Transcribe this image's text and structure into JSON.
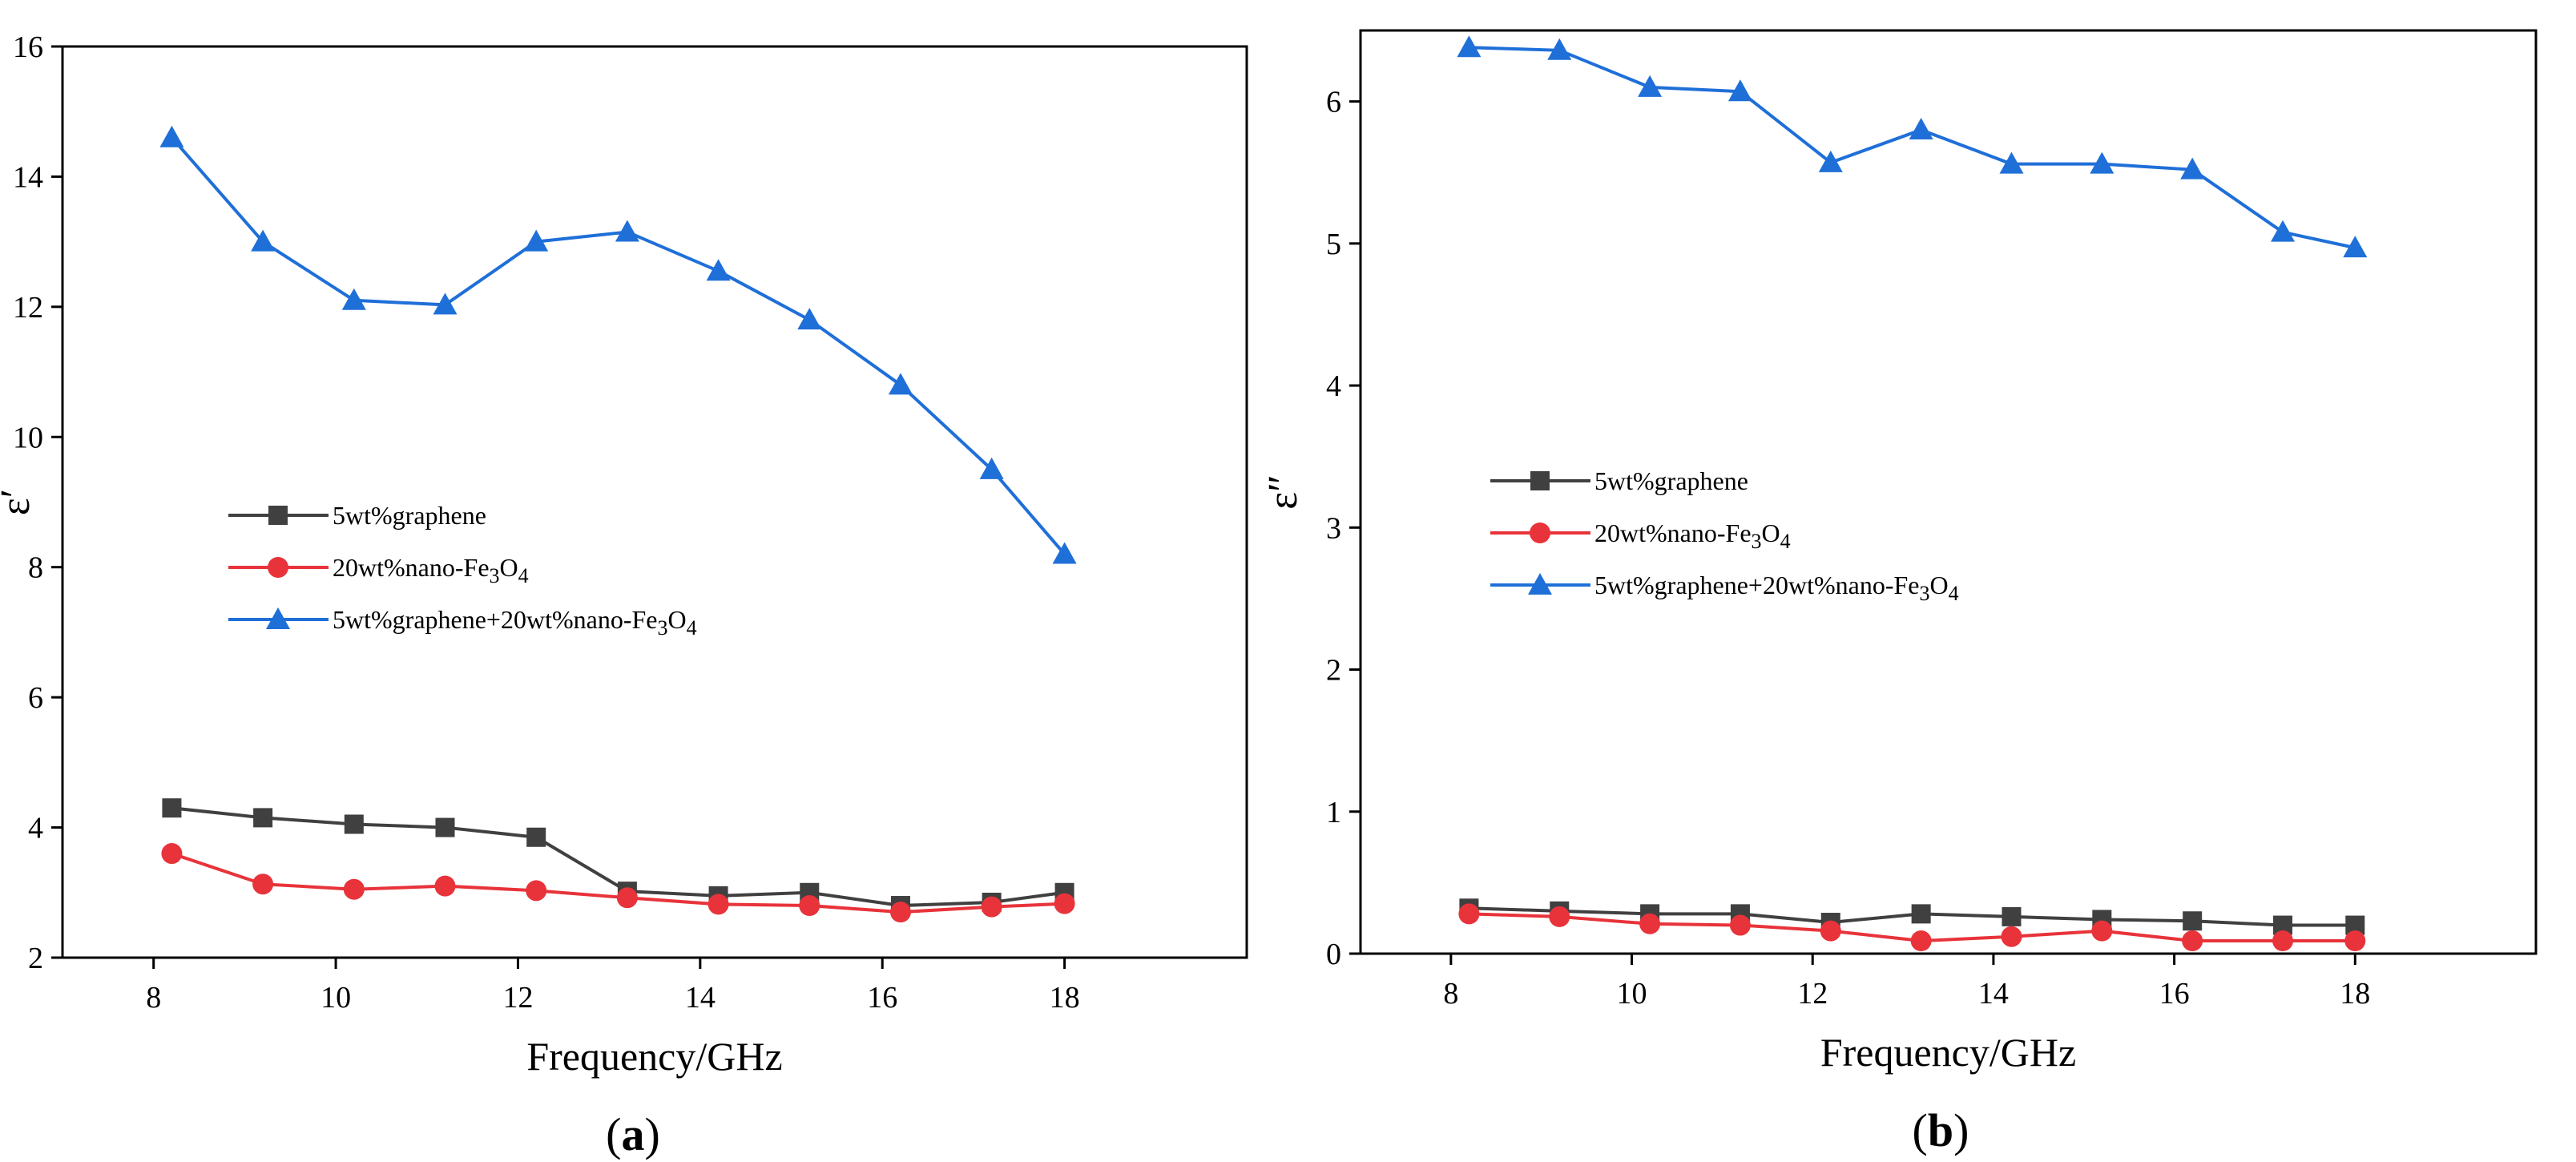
{
  "chart_data": [
    {
      "type": "line",
      "panel_label": "(a)",
      "panel_letter": "a",
      "xlabel": "Frequency/GHz",
      "ylabel": "ε′",
      "xlim": [
        7,
        20
      ],
      "ylim": [
        2,
        16
      ],
      "xticks": [
        8,
        10,
        12,
        14,
        16,
        18
      ],
      "yticks": [
        2,
        4,
        6,
        8,
        10,
        12,
        14,
        16
      ],
      "legend_position": "center-left",
      "x": [
        8.2,
        9.2,
        10.2,
        11.2,
        12.2,
        13.2,
        14.2,
        15.2,
        16.2,
        17.2,
        18.0
      ],
      "series": [
        {
          "name": "5wt%graphene",
          "color": "#404040",
          "marker": "square",
          "values": [
            4.3,
            4.15,
            4.05,
            4.0,
            3.85,
            3.02,
            2.95,
            3.0,
            2.8,
            2.85,
            3.0
          ]
        },
        {
          "name": "20wt%nano-Fe3O4",
          "color": "#e8333a",
          "marker": "circle",
          "values": [
            3.6,
            3.13,
            3.05,
            3.1,
            3.03,
            2.92,
            2.82,
            2.8,
            2.7,
            2.78,
            2.83
          ]
        },
        {
          "name": "5wt%graphene+20wt%nano-Fe3O4",
          "color": "#1f6fd8",
          "marker": "triangle",
          "values": [
            14.6,
            13.0,
            12.1,
            12.03,
            13.0,
            13.15,
            12.55,
            11.8,
            10.8,
            9.5,
            8.2
          ]
        }
      ]
    },
    {
      "type": "line",
      "panel_label": "(b)",
      "panel_letter": "b",
      "xlabel": "Frequency/GHz",
      "ylabel": "ε″",
      "xlim": [
        7,
        20
      ],
      "ylim": [
        0,
        6.5
      ],
      "xticks": [
        8,
        10,
        12,
        14,
        16,
        18
      ],
      "yticks": [
        0,
        1,
        2,
        3,
        4,
        5,
        6
      ],
      "legend_position": "center-left",
      "x": [
        8.2,
        9.2,
        10.2,
        11.2,
        12.2,
        13.2,
        14.2,
        15.2,
        16.2,
        17.2,
        18.0
      ],
      "series": [
        {
          "name": "5wt%graphene",
          "color": "#404040",
          "marker": "square",
          "values": [
            0.32,
            0.3,
            0.28,
            0.28,
            0.22,
            0.28,
            0.26,
            0.24,
            0.23,
            0.2,
            0.2
          ]
        },
        {
          "name": "20wt%nano-Fe3O4",
          "color": "#e8333a",
          "marker": "circle",
          "values": [
            0.28,
            0.26,
            0.21,
            0.2,
            0.16,
            0.09,
            0.12,
            0.16,
            0.09,
            0.09,
            0.09
          ]
        },
        {
          "name": "5wt%graphene+20wt%nano-Fe3O4",
          "color": "#1f6fd8",
          "marker": "triangle",
          "values": [
            6.38,
            6.36,
            6.1,
            6.07,
            5.57,
            5.8,
            5.56,
            5.56,
            5.52,
            5.08,
            4.97
          ]
        }
      ]
    }
  ]
}
